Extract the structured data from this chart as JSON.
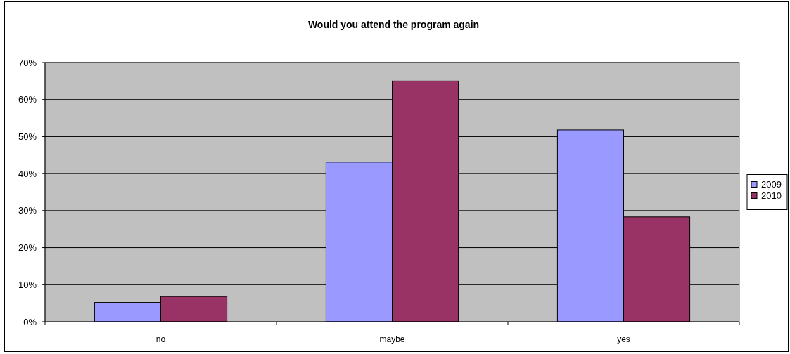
{
  "chart_data": {
    "type": "bar",
    "title": "Would you attend the program again",
    "categories": [
      "no",
      "maybe",
      "yes"
    ],
    "series": [
      {
        "name": "2009",
        "color": "#9999ff",
        "values": [
          5.2,
          43.1,
          51.8
        ]
      },
      {
        "name": "2010",
        "color": "#993366",
        "values": [
          6.8,
          65.0,
          28.3
        ]
      }
    ],
    "ylim": [
      0,
      70
    ],
    "yticks": [
      {
        "value": 0,
        "label": "0%"
      },
      {
        "value": 10,
        "label": "10%"
      },
      {
        "value": 20,
        "label": "20%"
      },
      {
        "value": 30,
        "label": "30%"
      },
      {
        "value": 40,
        "label": "40%"
      },
      {
        "value": 50,
        "label": "50%"
      },
      {
        "value": 60,
        "label": "60%"
      },
      {
        "value": 70,
        "label": "70%"
      }
    ],
    "grid": "y",
    "legend": "right"
  }
}
